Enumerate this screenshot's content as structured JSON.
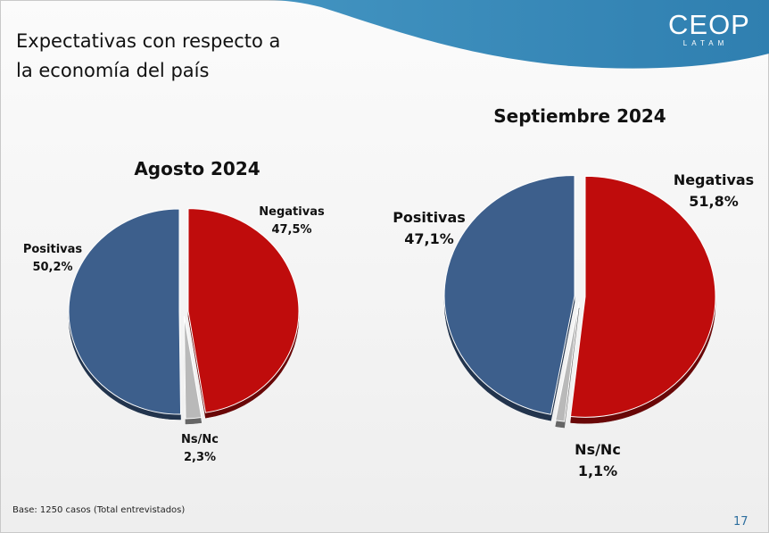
{
  "header": {
    "title_line1": "Expectativas con respecto a",
    "title_line2": "la economía del país",
    "logo_main": "CEOP",
    "logo_sub": "LATAM"
  },
  "colors": {
    "positivas": "#3d5f8c",
    "negativas": "#bf0c0c",
    "nsnc": "#b9b9b9",
    "banner": "#3b8ab8"
  },
  "chart_data": [
    {
      "type": "pie",
      "title": "Agosto 2024",
      "slices": [
        {
          "label": "Negativas",
          "value": 47.5,
          "display": "47,5%"
        },
        {
          "label": "Ns/Nc",
          "value": 2.3,
          "display": "2,3%"
        },
        {
          "label": "Positivas",
          "value": 50.2,
          "display": "50,2%"
        }
      ]
    },
    {
      "type": "pie",
      "title": "Septiembre 2024",
      "slices": [
        {
          "label": "Negativas",
          "value": 51.8,
          "display": "51,8%"
        },
        {
          "label": "Ns/Nc",
          "value": 1.1,
          "display": "1,1%"
        },
        {
          "label": "Positivas",
          "value": 47.1,
          "display": "47,1%"
        }
      ]
    }
  ],
  "footer": {
    "base_note": "Base: 1250 casos (Total entrevistados)",
    "page_number": "17"
  }
}
